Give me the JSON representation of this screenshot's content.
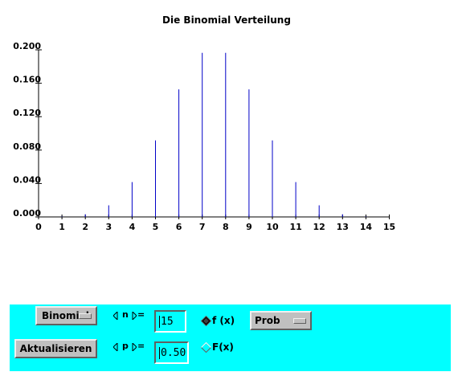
{
  "chart_data": {
    "type": "bar",
    "title": "Die Binomial Verteilung",
    "x": [
      0,
      1,
      2,
      3,
      4,
      5,
      6,
      7,
      8,
      9,
      10,
      11,
      12,
      13,
      14,
      15
    ],
    "values": [
      0.0,
      0.0005,
      0.0032,
      0.0139,
      0.0417,
      0.0916,
      0.1527,
      0.1964,
      0.1964,
      0.1527,
      0.0916,
      0.0417,
      0.0139,
      0.0032,
      0.0005,
      0.0
    ],
    "x_ticks": [
      "0",
      "1",
      "2",
      "3",
      "4",
      "5",
      "6",
      "7",
      "8",
      "9",
      "10",
      "11",
      "12",
      "13",
      "14",
      "15"
    ],
    "y_ticks": [
      "0.000",
      "0.040",
      "0.080",
      "0.120",
      "0.160",
      "0.200"
    ],
    "y_tick_values": [
      0,
      0.04,
      0.08,
      0.12,
      0.16,
      0.2
    ],
    "xlim": [
      0,
      15
    ],
    "ylim": [
      0,
      0.2
    ],
    "bar_color": "#0000c8",
    "grid": false
  },
  "controls": {
    "distribution_menu": "Binomial",
    "n_label": "n",
    "n_equals": "=",
    "n_value": "15",
    "p_label": "p",
    "p_equals": "=",
    "p_value": "0.50",
    "radio_fx": "f (x)",
    "radio_Fx": "F(x)",
    "radio_selected": "f (x)",
    "prob_menu": "Prob",
    "update_button": "Aktualisieren",
    "panel_color": "#00ffff"
  }
}
